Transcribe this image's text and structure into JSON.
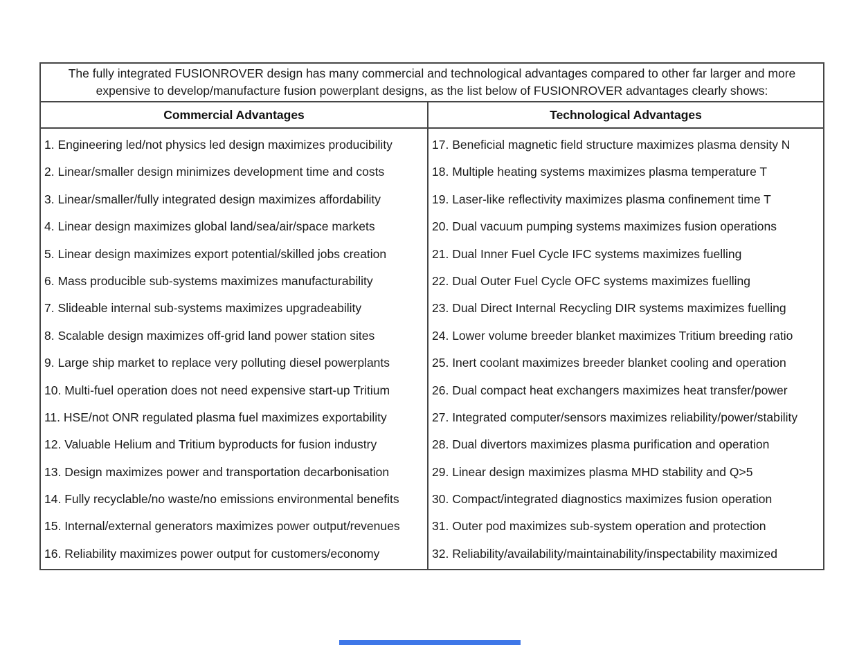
{
  "table": {
    "intro": "The fully integrated FUSIONROVER design has many commercial and technological advantages compared to other far larger and more expensive to develop/manufacture fusion powerplant designs, as the list below of FUSIONROVER advantages clearly shows:",
    "columns": [
      {
        "header": "Commercial Advantages",
        "items": [
          "1. Engineering led/not physics led design maximizes producibility",
          "2. Linear/smaller design minimizes development time and costs",
          "3. Linear/smaller/fully integrated design maximizes affordability",
          "4. Linear design maximizes global land/sea/air/space markets",
          "5. Linear design maximizes export potential/skilled jobs creation",
          "6. Mass producible sub-systems maximizes manufacturability",
          "7. Slideable internal sub-systems maximizes upgradeability",
          "8. Scalable design maximizes off-grid land power station sites",
          "9. Large ship market to replace very polluting diesel powerplants",
          "10. Multi-fuel operation does not need expensive start-up Tritium",
          "11. HSE/not ONR regulated plasma fuel maximizes exportability",
          "12. Valuable Helium and Tritium byproducts for fusion industry",
          "13. Design maximizes power and transportation decarbonisation",
          "14. Fully recyclable/no waste/no emissions environmental benefits",
          "15. Internal/external generators maximizes power output/revenues",
          "16. Reliability maximizes power output for customers/economy"
        ]
      },
      {
        "header": "Technological Advantages",
        "items": [
          "17. Beneficial magnetic field structure maximizes plasma density N",
          "18. Multiple heating systems maximizes plasma temperature T",
          "19. Laser-like reflectivity maximizes plasma confinement time T",
          "20. Dual vacuum pumping systems maximizes fusion operations",
          "21. Dual Inner Fuel Cycle IFC systems maximizes fuelling",
          "22. Dual Outer Fuel Cycle OFC systems maximizes fuelling",
          "23. Dual Direct Internal Recycling DIR systems maximizes fuelling",
          "24. Lower volume breeder blanket maximizes Tritium breeding ratio",
          "25. Inert coolant maximizes breeder blanket cooling and operation",
          "26. Dual compact heat exchangers maximizes heat transfer/power",
          "27. Integrated computer/sensors maximizes reliability/power/stability",
          "28. Dual divertors maximizes plasma purification and operation",
          "29. Linear design maximizes plasma MHD stability and Q>5",
          "30. Compact/integrated diagnostics maximizes fusion operation",
          "31. Outer pod maximizes sub-system operation and protection",
          "32. Reliability/availability/maintainability/inspectability maximized"
        ]
      }
    ]
  },
  "colors": {
    "border": "#454545",
    "text": "#1a1a1a",
    "scrollbar_thumb": "#3e77e8"
  }
}
